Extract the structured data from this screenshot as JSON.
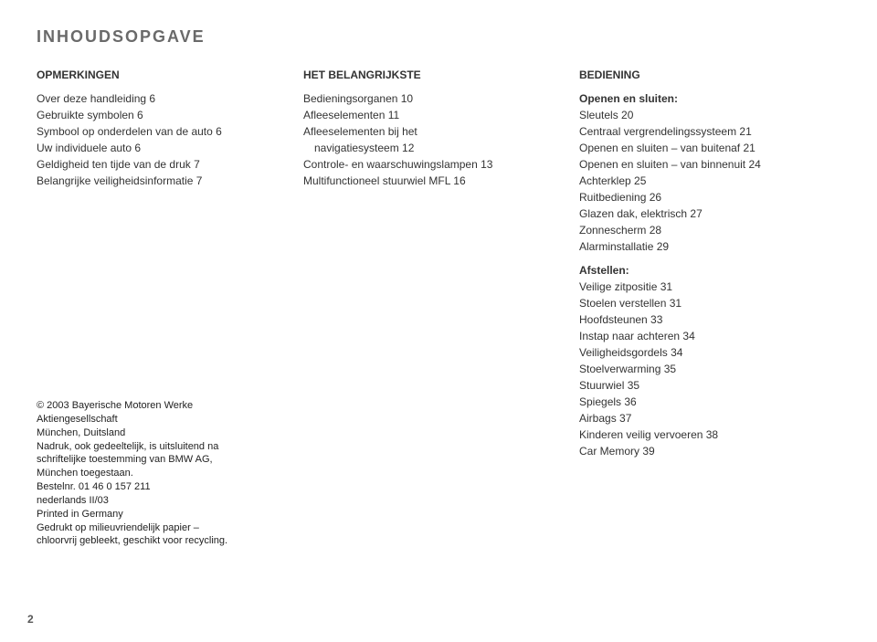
{
  "title": "INHOUDSOPGAVE",
  "col1": {
    "head": "OPMERKINGEN",
    "entries": [
      "Over deze handleiding  6",
      "Gebruikte symbolen  6",
      "Symbool op onderdelen van de auto  6",
      "Uw individuele auto  6",
      "Geldigheid ten tijde van de druk  7",
      "Belangrijke veiligheidsinformatie  7"
    ],
    "copyright": [
      "© 2003 Bayerische Motoren Werke",
      "Aktiengesellschaft",
      "München, Duitsland",
      "Nadruk, ook gedeeltelijk, is uitsluitend na",
      "schriftelijke toestemming van BMW AG,",
      "München toegestaan.",
      "Bestelnr. 01 46 0 157 211",
      "nederlands II/03",
      "Printed in Germany",
      "Gedrukt op milieuvriendelijk papier –",
      "chloorvrij gebleekt, geschikt voor recycling."
    ]
  },
  "col2": {
    "head": "HET BELANGRIJKSTE",
    "entries": [
      "Bedieningsorganen  10",
      "Afleeselementen  11",
      "Afleeselementen bij het",
      "   navigatiesysteem  12",
      "Controle- en waarschuwingslampen  13",
      "Multifunctioneel stuurwiel MFL  16"
    ]
  },
  "col3": {
    "head": "BEDIENING",
    "sub1": "Openen en sluiten:",
    "entries1": [
      "Sleutels  20",
      "Centraal vergrendelingssysteem  21",
      "Openen en sluiten – van buitenaf  21",
      "Openen en sluiten – van binnenuit  24",
      "Achterklep  25",
      "Ruitbediening  26",
      "Glazen dak, elektrisch  27",
      "Zonnescherm  28",
      "Alarminstallatie  29"
    ],
    "sub2": "Afstellen:",
    "entries2": [
      "Veilige zitpositie  31",
      "Stoelen verstellen  31",
      "Hoofdsteunen  33",
      "Instap naar achteren  34",
      "Veiligheidsgordels  34",
      "Stoelverwarming  35",
      "Stuurwiel  35",
      "Spiegels  36",
      "Airbags  37",
      "Kinderen veilig vervoeren  38",
      "Car Memory  39"
    ]
  },
  "page_number": "2"
}
